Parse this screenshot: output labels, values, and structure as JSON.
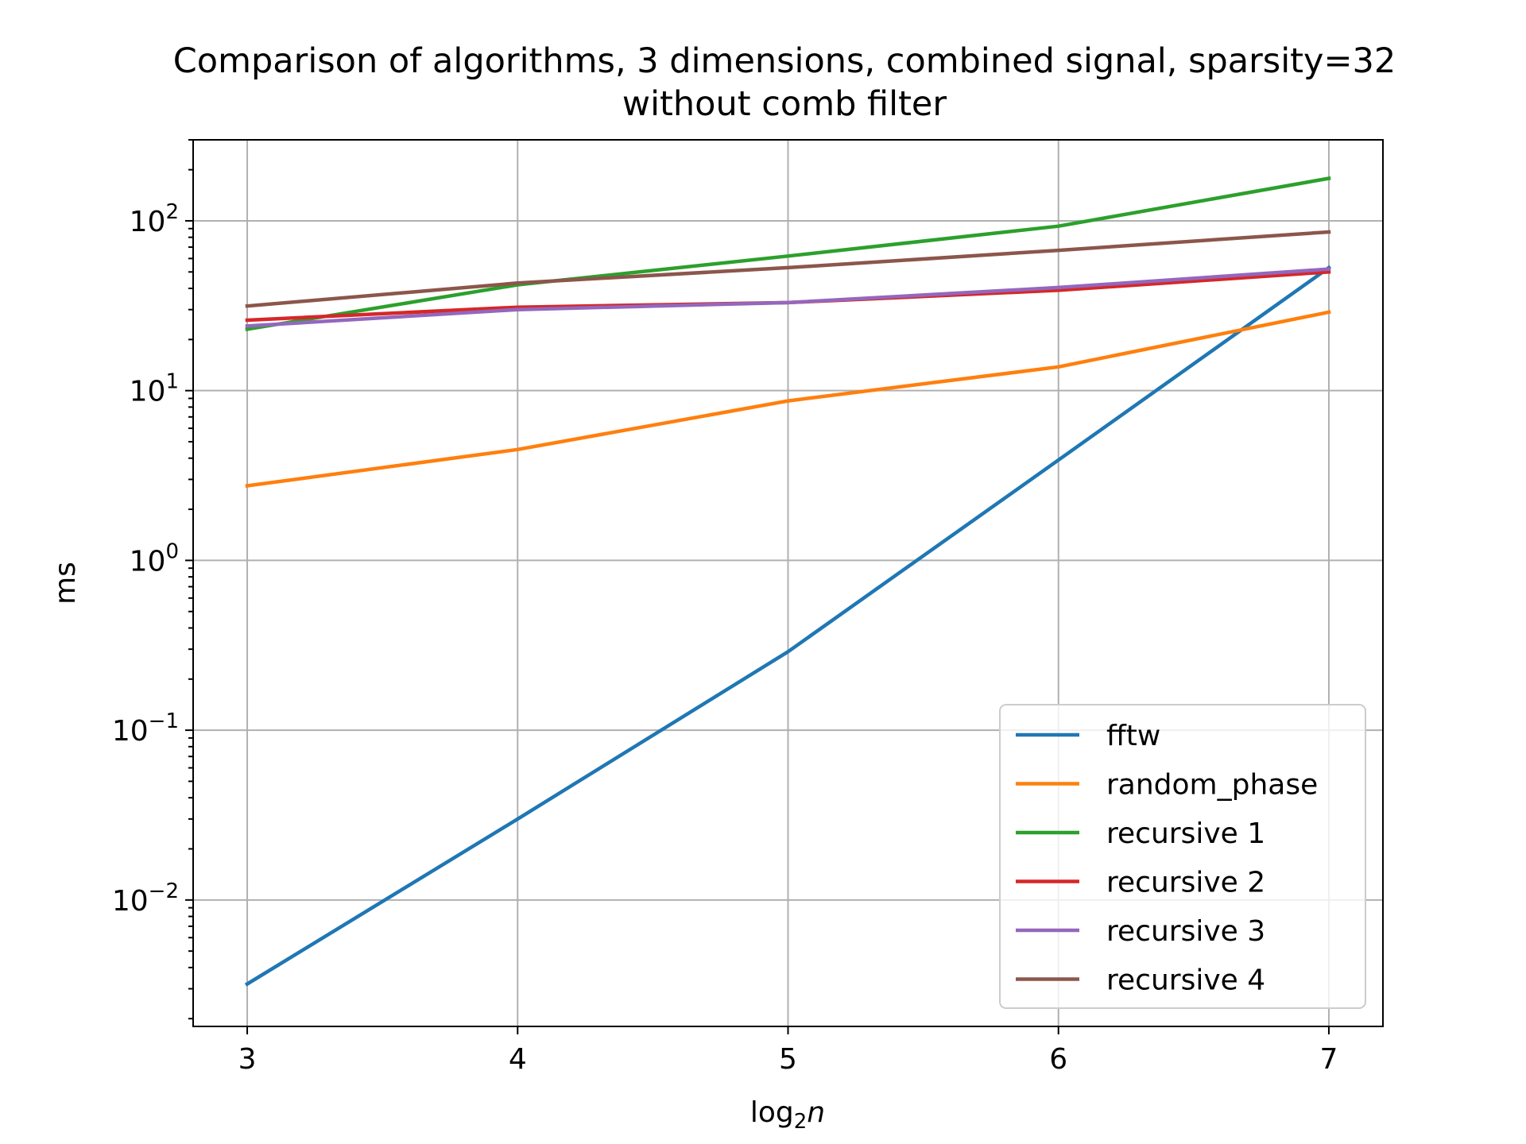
{
  "chart_data": {
    "type": "line",
    "title": "Comparison of algorithms, 3 dimensions, combined signal, sparsity=32",
    "subtitle": "without comb filter",
    "xlabel": {
      "base": "log",
      "sub": "2",
      "var": "n"
    },
    "ylabel": "ms",
    "x": [
      3,
      4,
      5,
      6,
      7
    ],
    "xticks": [
      "3",
      "4",
      "5",
      "6",
      "7"
    ],
    "xlim": [
      2.8,
      7.2
    ],
    "yscale": "log",
    "ylim": [
      0.0018,
      300
    ],
    "yticks": [
      {
        "value": 0.01,
        "base": "10",
        "exp": "−2"
      },
      {
        "value": 0.1,
        "base": "10",
        "exp": "−1"
      },
      {
        "value": 1,
        "base": "10",
        "exp": "0"
      },
      {
        "value": 10,
        "base": "10",
        "exp": "1"
      },
      {
        "value": 100,
        "base": "10",
        "exp": "2"
      }
    ],
    "grid": true,
    "legend_position": "lower-right",
    "series": [
      {
        "name": "fftw",
        "color": "#1f77b4",
        "values": [
          0.0032,
          0.03,
          0.29,
          3.9,
          53
        ]
      },
      {
        "name": "random_phase",
        "color": "#ff7f0e",
        "values": [
          2.75,
          4.5,
          8.7,
          13.8,
          29
        ]
      },
      {
        "name": "recursive 1",
        "color": "#2ca02c",
        "values": [
          23,
          42,
          62,
          93,
          178
        ]
      },
      {
        "name": "recursive 2",
        "color": "#d62728",
        "values": [
          26,
          31,
          33,
          39,
          50
        ]
      },
      {
        "name": "recursive 3",
        "color": "#9467bd",
        "values": [
          24,
          30,
          33,
          40.5,
          52
        ]
      },
      {
        "name": "recursive 4",
        "color": "#8c564b",
        "values": [
          31.5,
          43,
          53,
          67,
          86
        ]
      }
    ]
  }
}
